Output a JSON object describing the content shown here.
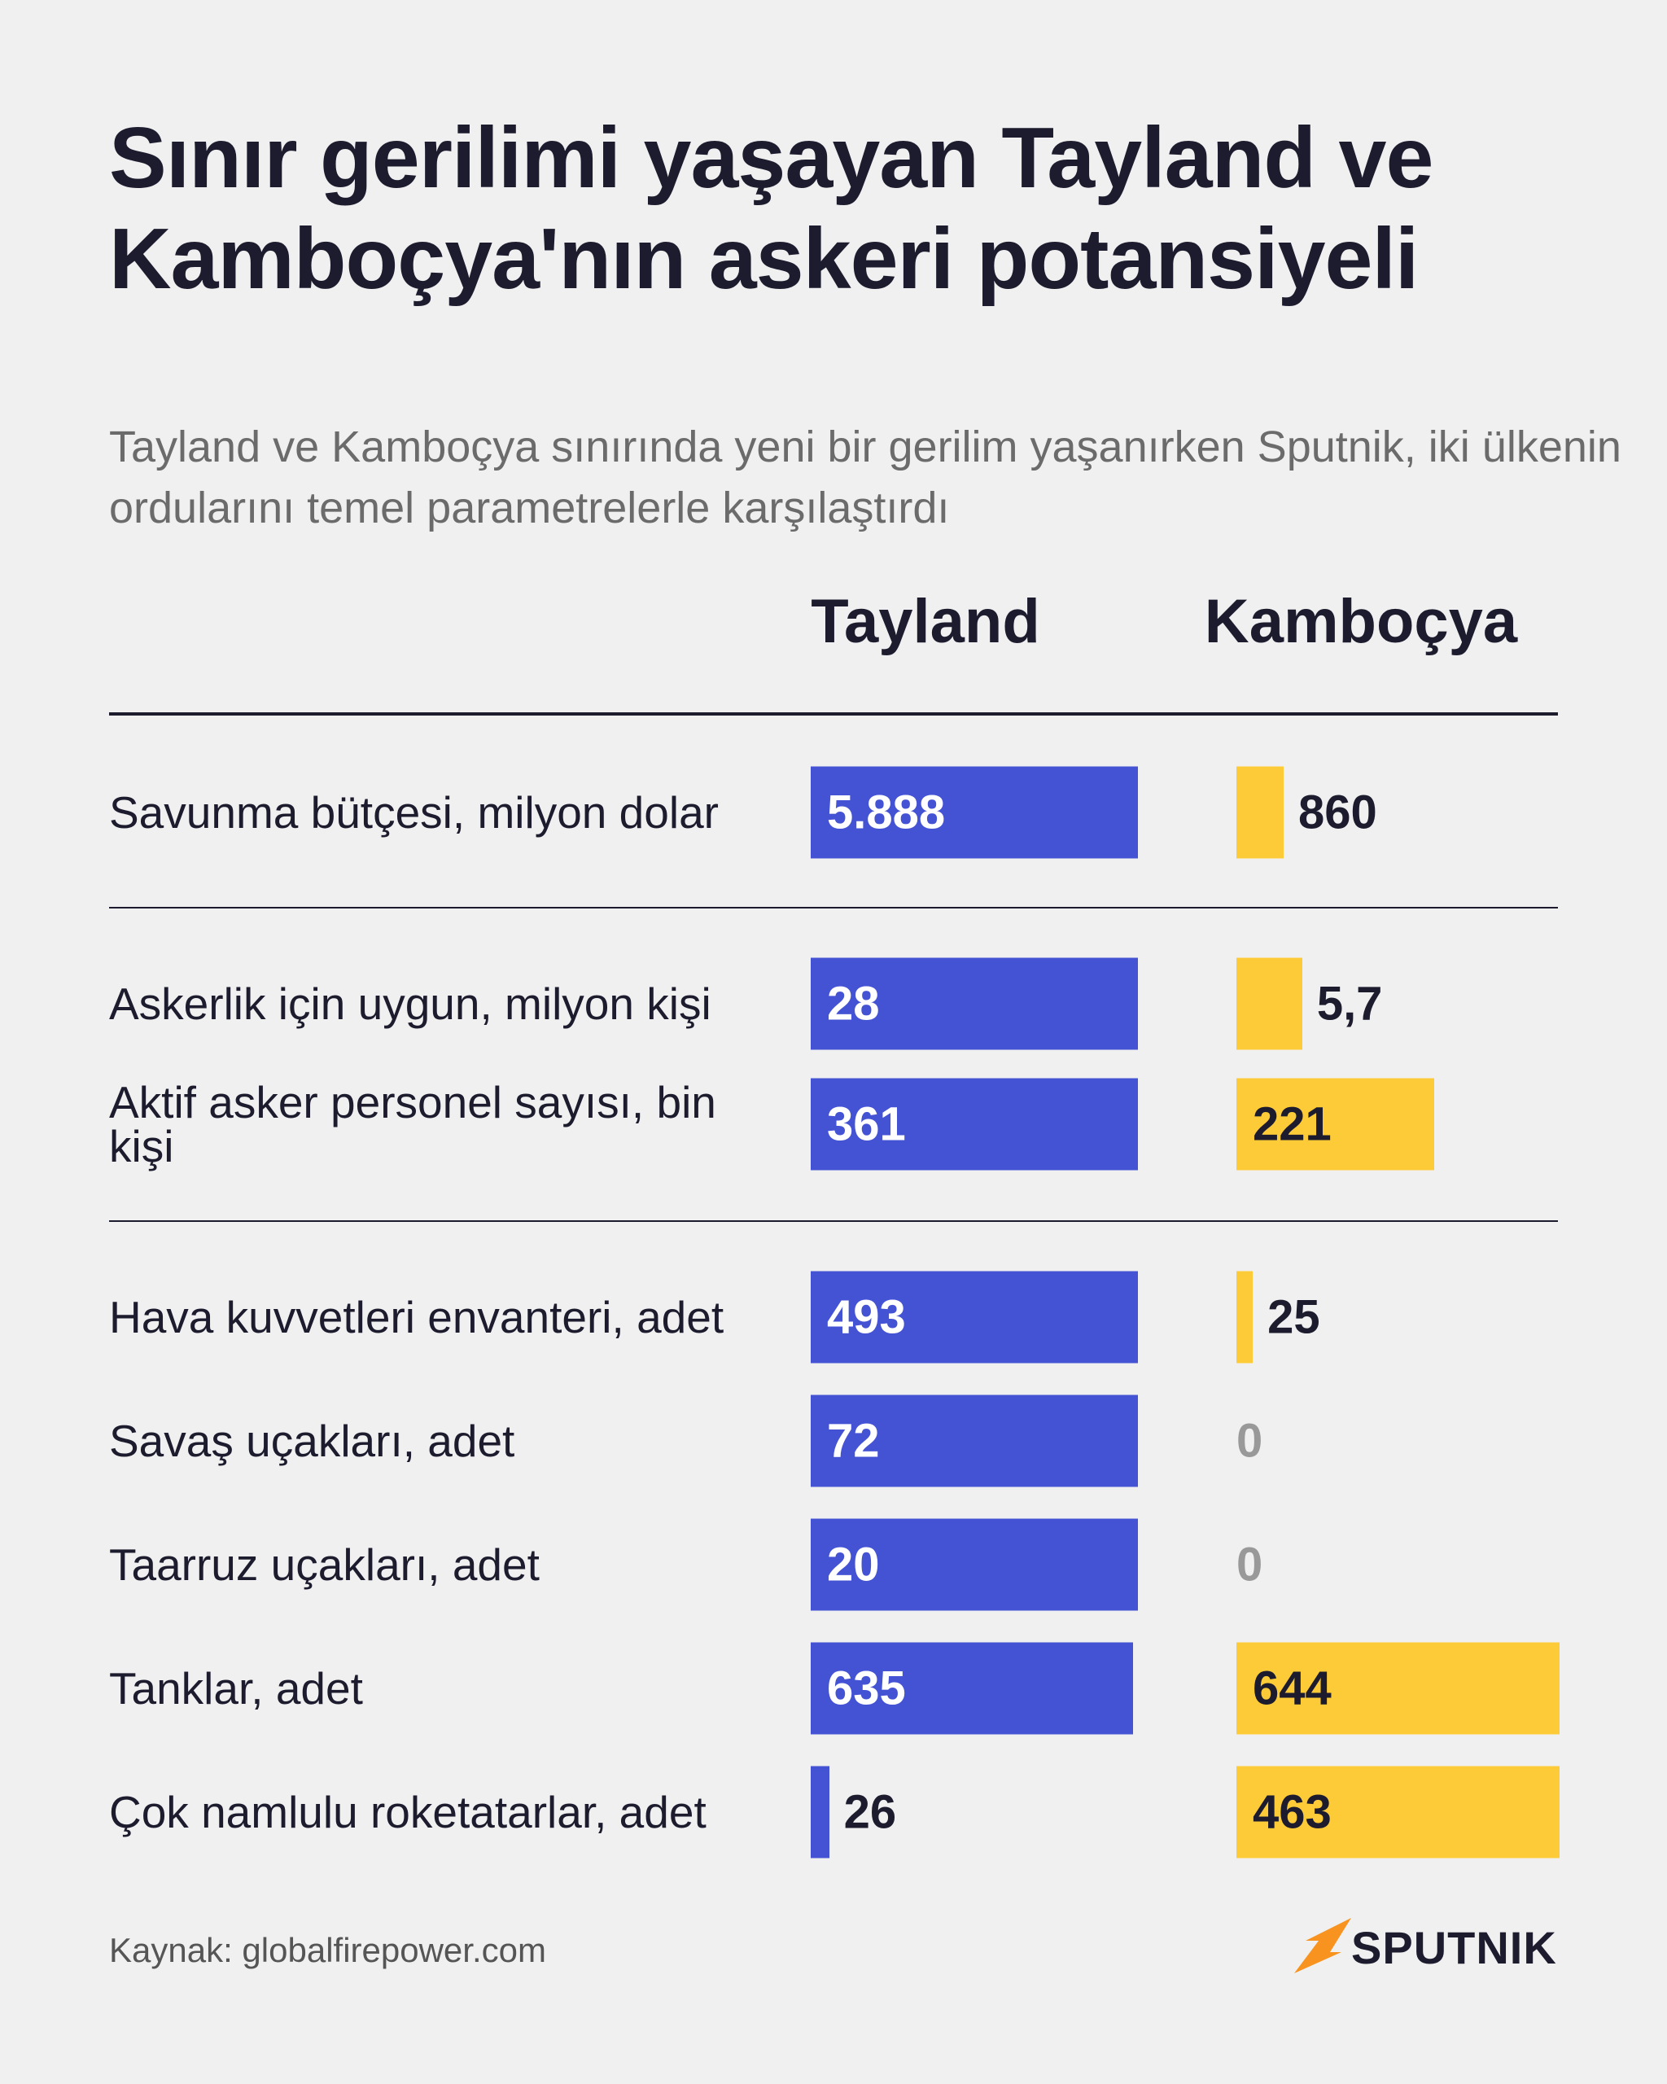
{
  "chart_data": {
    "type": "bar",
    "title": "Sınır gerilimi yaşayan Tayland ve Kamboçya'nın askeri potansiyeli",
    "subtitle": "Tayland ve Kamboçya sınırında yeni bir gerilim yaşanırken Sputnik, iki ülkenin ordularını temel parametrelerle karşılaştırdı",
    "categories": [
      "Savunma bütçesi, milyon dolar",
      "Askerlik için uygun, milyon kişi",
      "Aktif asker personel sayısı, bin kişi",
      "Hava kuvvetleri envanteri, adet",
      "Savaş uçakları, adet",
      "Taarruz uçakları, adet",
      "Tanklar, adet",
      "Çok namlulu roketatarlar, adet"
    ],
    "series": [
      {
        "name": "Tayland",
        "color": "#4453d4",
        "values": [
          5888,
          28,
          361,
          493,
          72,
          20,
          635,
          26
        ],
        "value_labels": [
          "5.888",
          "28",
          "361",
          "493",
          "72",
          "20",
          "635",
          "26"
        ]
      },
      {
        "name": "Kamboçya",
        "color": "#fecb38",
        "values": [
          860,
          5.7,
          221,
          25,
          0,
          0,
          644,
          463
        ],
        "value_labels": [
          "860",
          "5,7",
          "221",
          "25",
          "0",
          "0",
          "644",
          "463"
        ]
      }
    ],
    "source": "Kaynak: globalfirepower.com",
    "brand": "SPUTNIK"
  }
}
